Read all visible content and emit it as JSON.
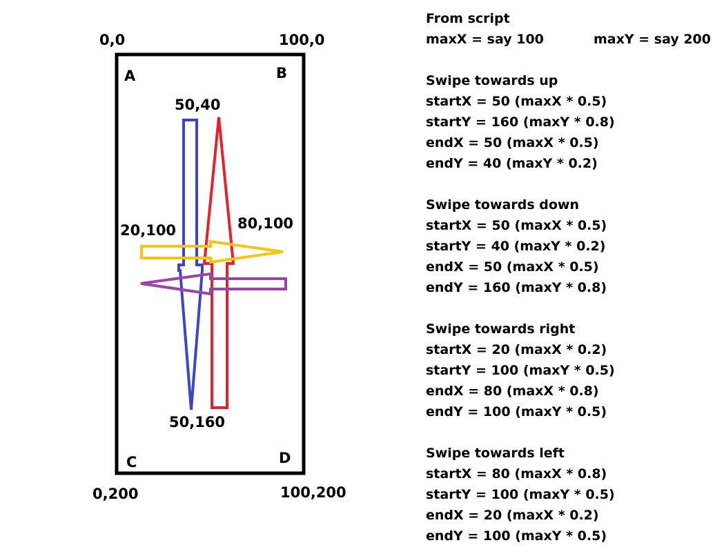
{
  "diagram": {
    "corners": {
      "top_left_coord": "0,0",
      "top_right_coord": "100,0",
      "bottom_left_coord": "0,200",
      "bottom_right_coord": "100,200"
    },
    "corner_letters": {
      "a": "A",
      "b": "B",
      "c": "C",
      "d": "D"
    },
    "points": {
      "up_end": "50,40",
      "down_end": "50,160",
      "right_start": "20,100",
      "left_start": "80,100"
    },
    "colors": {
      "up_arrow": "#e8202a",
      "down_arrow": "#3a46c8",
      "right_arrow": "#f5c510",
      "left_arrow": "#9a44a8",
      "screen_border": "#000000"
    }
  },
  "notes": {
    "header": "From script",
    "max_x": "maxX = say 100",
    "max_y": "maxY = say 200",
    "sections": [
      {
        "title": "Swipe towards up",
        "lines": [
          "startX = 50 (maxX * 0.5)",
          "startY = 160 (maxY * 0.8)",
          "endX = 50 (maxX * 0.5)",
          "endY = 40 (maxY * 0.2)"
        ]
      },
      {
        "title": "Swipe towards down",
        "lines": [
          "startX = 50 (maxX * 0.5)",
          "startY = 40 (maxY * 0.2)",
          "endX = 50 (maxX * 0.5)",
          "endY = 160 (maxY * 0.8)"
        ]
      },
      {
        "title": "Swipe towards right",
        "lines": [
          "startX = 20 (maxX * 0.2)",
          "startY = 100 (maxY * 0.5)",
          "endX = 80 (maxX * 0.8)",
          "endY = 100 (maxY * 0.5)"
        ]
      },
      {
        "title": "Swipe towards left",
        "lines": [
          "startX = 80 (maxX * 0.8)",
          "startY = 100 (maxY * 0.5)",
          "endX = 20 (maxX * 0.2)",
          "endY = 100 (maxY * 0.5)"
        ]
      }
    ]
  }
}
